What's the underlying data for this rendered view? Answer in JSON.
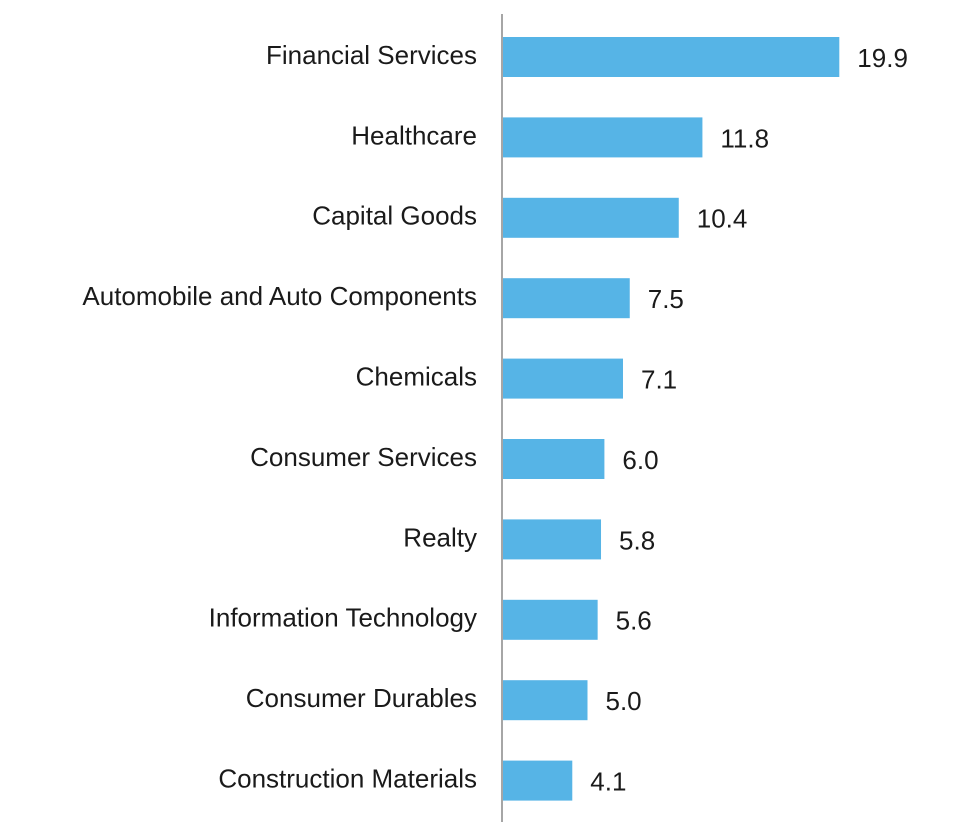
{
  "chart_data": {
    "type": "bar",
    "orientation": "horizontal",
    "categories": [
      "Financial Services",
      "Healthcare",
      "Capital Goods",
      "Automobile and Auto Components",
      "Chemicals",
      "Consumer Services",
      "Realty",
      "Information Technology",
      "Consumer Durables",
      "Construction Materials"
    ],
    "values": [
      19.9,
      11.8,
      10.4,
      7.5,
      7.1,
      6.0,
      5.8,
      5.6,
      5.0,
      4.1
    ],
    "value_labels": [
      "19.9",
      "11.8",
      "10.4",
      "7.5",
      "7.1",
      "6.0",
      "5.8",
      "5.6",
      "5.0",
      "4.1"
    ],
    "title": "",
    "xlabel": "",
    "ylabel": "",
    "grid": false,
    "legend": "none",
    "bar_color": "#56b4e6",
    "axis_color": "#a6a6a6"
  }
}
